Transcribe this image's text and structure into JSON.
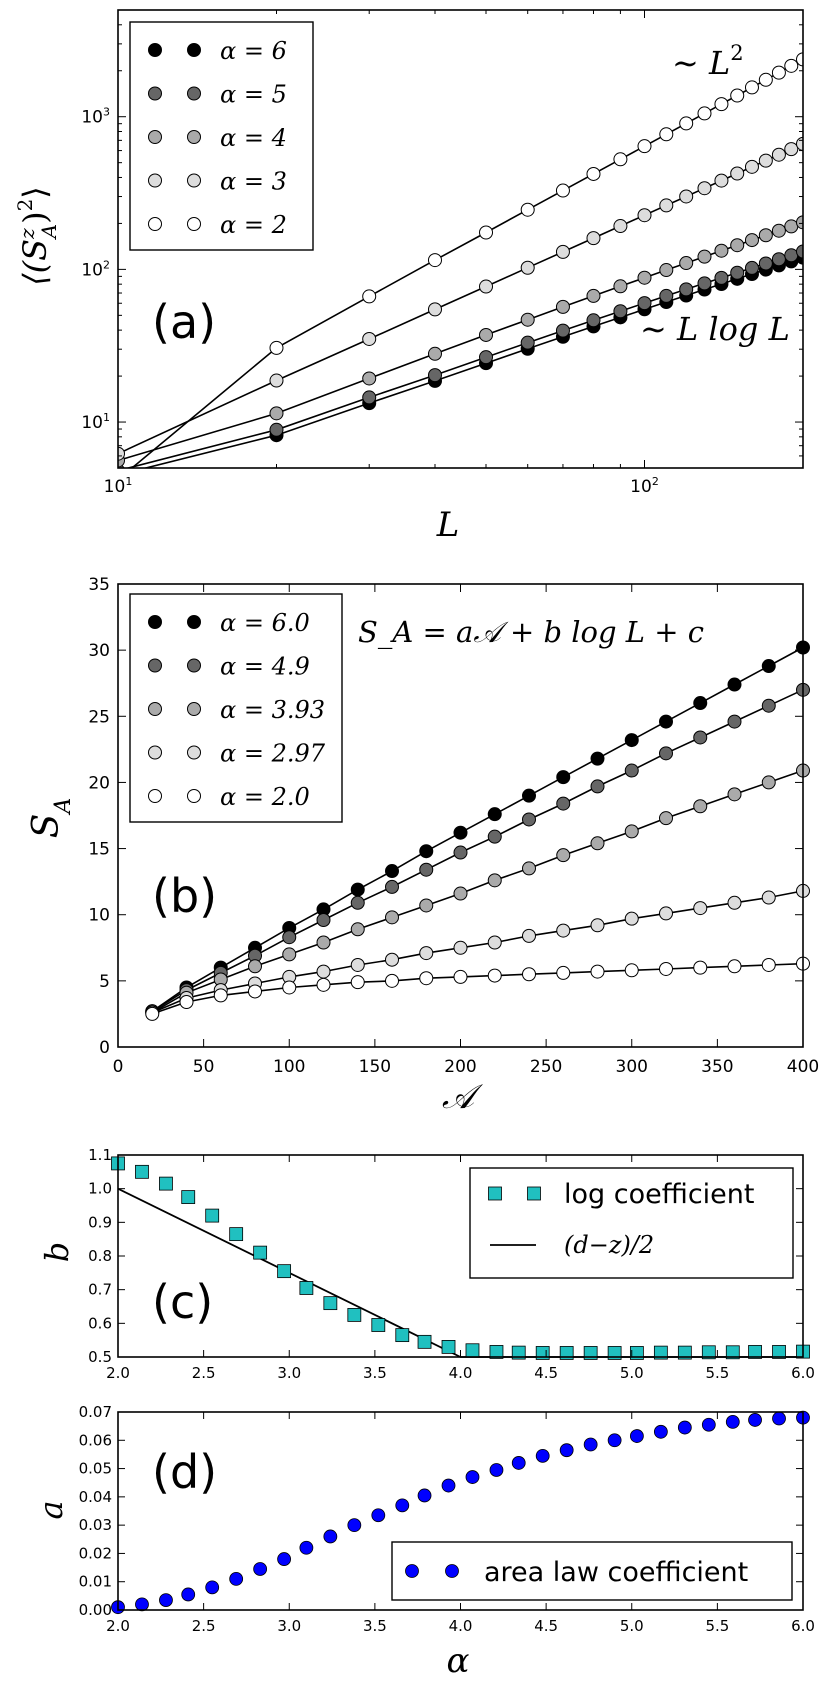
{
  "chart_data": [
    {
      "panel": "(a)",
      "type": "line",
      "scale": "log-log",
      "xlabel": "L",
      "ylabel": "⟨(S_A^z)^2⟩",
      "xlim": [
        10,
        200
      ],
      "ylim": [
        5,
        5000
      ],
      "xticks": [
        {
          "value": 10,
          "base": "10",
          "exp": "1"
        },
        {
          "value": 100,
          "base": "10",
          "exp": "2"
        }
      ],
      "yticks": [
        {
          "value": 10,
          "base": "10",
          "exp": "1"
        },
        {
          "value": 100,
          "base": "10",
          "exp": "2"
        },
        {
          "value": 1000,
          "base": "10",
          "exp": "3"
        }
      ],
      "legend_position": "top-left",
      "annotations": [
        {
          "text": "~ L²",
          "position": "top-right"
        },
        {
          "text": "~ L log L",
          "position": "right-middle"
        }
      ],
      "x": [
        10,
        20,
        30,
        40,
        50,
        60,
        70,
        80,
        90,
        100,
        110,
        120,
        130,
        140,
        150,
        160,
        170,
        180,
        190,
        200
      ],
      "series": [
        {
          "name": "α = 6",
          "fill": "#000000",
          "values": [
            4.5,
            8.2,
            13.3,
            18.6,
            24.3,
            30.2,
            36.2,
            42.3,
            48.5,
            54.8,
            61.1,
            67.4,
            73.8,
            80.2,
            86.7,
            93.2,
            99.7,
            106.2,
            112.8,
            119.4
          ]
        },
        {
          "name": "α = 5",
          "fill": "#666666",
          "values": [
            4.8,
            8.9,
            14.5,
            20.3,
            26.6,
            33.1,
            39.7,
            46.4,
            53.2,
            60.1,
            67.0,
            74.0,
            81.0,
            88.0,
            95.1,
            102.2,
            109.3,
            116.5,
            123.7,
            131.0
          ]
        },
        {
          "name": "α = 4",
          "fill": "#aaaaaa",
          "values": [
            5.6,
            11.4,
            19.3,
            28.0,
            37.2,
            46.8,
            56.8,
            67.0,
            77.5,
            88.2,
            99.0,
            110.0,
            121.2,
            132.5,
            144.0,
            155.6,
            167.3,
            179.2,
            191.2,
            203.3
          ]
        },
        {
          "name": "α = 3",
          "fill": "#dddddd",
          "values": [
            6.2,
            18.7,
            35.0,
            54.7,
            77.2,
            102.5,
            130.2,
            160.2,
            192.3,
            226.4,
            262.4,
            300.3,
            340.0,
            381.5,
            424.6,
            469.4,
            515.7,
            563.7,
            613.2,
            664.2
          ]
        },
        {
          "name": "α = 2",
          "fill": "#ffffff",
          "values": [
            4.2,
            30.6,
            66.5,
            115.0,
            174.4,
            245.9,
            328.3,
            421.8,
            526.1,
            641.3,
            767.2,
            903.8,
            1051.0,
            1208.8,
            1377.1,
            1555.8,
            1744.9,
            1944.4,
            2154.1,
            2374.0
          ]
        }
      ]
    },
    {
      "panel": "(b)",
      "type": "line",
      "xlabel": "𝒜",
      "ylabel": "S_A",
      "xlim": [
        0,
        400
      ],
      "ylim": [
        0,
        35
      ],
      "xticks": [
        "0",
        "50",
        "100",
        "150",
        "200",
        "250",
        "300",
        "350",
        "400"
      ],
      "yticks": [
        "0",
        "5",
        "10",
        "15",
        "20",
        "25",
        "30",
        "35"
      ],
      "legend_position": "top-left",
      "annotation": "S_A = a𝒜 + b log L + c",
      "x": [
        20,
        40,
        60,
        80,
        100,
        120,
        140,
        160,
        180,
        200,
        220,
        240,
        260,
        280,
        300,
        320,
        340,
        360,
        380,
        400
      ],
      "series": [
        {
          "name": "α = 6.0",
          "fill": "#000000",
          "values": [
            2.7,
            4.5,
            6.0,
            7.5,
            9.0,
            10.4,
            11.9,
            13.3,
            14.8,
            16.2,
            17.6,
            19.0,
            20.4,
            21.8,
            23.2,
            24.6,
            26.0,
            27.4,
            28.8,
            30.2
          ]
        },
        {
          "name": "α = 4.9",
          "fill": "#666666",
          "values": [
            2.7,
            4.3,
            5.6,
            6.9,
            8.3,
            9.6,
            10.9,
            12.1,
            13.4,
            14.7,
            15.9,
            17.2,
            18.4,
            19.7,
            20.9,
            22.2,
            23.4,
            24.6,
            25.8,
            27.0
          ]
        },
        {
          "name": "α = 3.93",
          "fill": "#aaaaaa",
          "values": [
            2.6,
            4.1,
            5.1,
            6.1,
            7.0,
            7.9,
            8.9,
            9.8,
            10.7,
            11.6,
            12.6,
            13.5,
            14.5,
            15.4,
            16.3,
            17.3,
            18.2,
            19.1,
            20.0,
            20.9
          ]
        },
        {
          "name": "α = 2.97",
          "fill": "#dddddd",
          "values": [
            2.6,
            3.7,
            4.3,
            4.8,
            5.3,
            5.7,
            6.2,
            6.6,
            7.1,
            7.5,
            7.9,
            8.4,
            8.8,
            9.2,
            9.7,
            10.1,
            10.5,
            10.9,
            11.3,
            11.8
          ]
        },
        {
          "name": "α = 2.0",
          "fill": "#ffffff",
          "values": [
            2.5,
            3.4,
            3.9,
            4.2,
            4.5,
            4.7,
            4.9,
            5.0,
            5.2,
            5.3,
            5.4,
            5.5,
            5.6,
            5.7,
            5.8,
            5.9,
            6.0,
            6.1,
            6.2,
            6.3
          ]
        }
      ]
    },
    {
      "panel": "(c)",
      "type": "scatter",
      "xlabel": "",
      "ylabel": "b",
      "xlim": [
        2.0,
        6.0
      ],
      "ylim": [
        0.5,
        1.1
      ],
      "xticks": [
        "2.0",
        "2.5",
        "3.0",
        "3.5",
        "4.0",
        "4.5",
        "5.0",
        "5.5",
        "6.0"
      ],
      "yticks": [
        "0.5",
        "0.6",
        "0.7",
        "0.8",
        "0.9",
        "1.0",
        "1.1"
      ],
      "legend_position": "top-right",
      "series": [
        {
          "name": "log coefficient",
          "marker": "square",
          "color": "#20c0c0",
          "x": [
            2.0,
            2.14,
            2.28,
            2.41,
            2.55,
            2.69,
            2.83,
            2.97,
            3.1,
            3.24,
            3.38,
            3.52,
            3.66,
            3.79,
            3.93,
            4.07,
            4.21,
            4.34,
            4.48,
            4.62,
            4.76,
            4.9,
            5.03,
            5.17,
            5.31,
            5.45,
            5.59,
            5.72,
            5.86,
            6.0
          ],
          "values": [
            1.075,
            1.05,
            1.015,
            0.975,
            0.92,
            0.865,
            0.81,
            0.755,
            0.705,
            0.66,
            0.625,
            0.595,
            0.565,
            0.545,
            0.53,
            0.52,
            0.515,
            0.513,
            0.512,
            0.512,
            0.512,
            0.512,
            0.512,
            0.513,
            0.513,
            0.514,
            0.514,
            0.515,
            0.515,
            0.516
          ]
        },
        {
          "name": "(d−z)/2",
          "marker": "line",
          "color": "#000000",
          "x": [
            2.0,
            4.0,
            6.0
          ],
          "values": [
            1.0,
            0.5,
            0.5
          ]
        }
      ]
    },
    {
      "panel": "(d)",
      "type": "scatter",
      "xlabel": "α",
      "ylabel": "a",
      "xlim": [
        2.0,
        6.0
      ],
      "ylim": [
        0.0,
        0.07
      ],
      "xticks": [
        "2.0",
        "2.5",
        "3.0",
        "3.5",
        "4.0",
        "4.5",
        "5.0",
        "5.5",
        "6.0"
      ],
      "yticks": [
        "0.00",
        "0.01",
        "0.02",
        "0.03",
        "0.04",
        "0.05",
        "0.06",
        "0.07"
      ],
      "legend_position": "bottom-right",
      "series": [
        {
          "name": "area law coefficient",
          "marker": "circle",
          "color": "#0000ff",
          "x": [
            2.0,
            2.14,
            2.28,
            2.41,
            2.55,
            2.69,
            2.83,
            2.97,
            3.1,
            3.24,
            3.38,
            3.52,
            3.66,
            3.79,
            3.93,
            4.07,
            4.21,
            4.34,
            4.48,
            4.62,
            4.76,
            4.9,
            5.03,
            5.17,
            5.31,
            5.45,
            5.59,
            5.72,
            5.86,
            6.0
          ],
          "values": [
            0.001,
            0.002,
            0.0035,
            0.0055,
            0.008,
            0.011,
            0.0145,
            0.018,
            0.022,
            0.026,
            0.03,
            0.0335,
            0.037,
            0.0405,
            0.044,
            0.047,
            0.0495,
            0.052,
            0.0545,
            0.0565,
            0.0585,
            0.06,
            0.0615,
            0.063,
            0.0645,
            0.0655,
            0.0665,
            0.0672,
            0.0677,
            0.068
          ]
        }
      ]
    }
  ],
  "labels": {
    "a": {
      "panel": "(a)",
      "xlabel": "L",
      "yl_open": "⟨(",
      "yl_S": "S",
      "yl_sup": "z",
      "yl_sub": "A",
      "yl_close": ")",
      "yl_sq": "2",
      "yl_rangle": "⟩",
      "annot_l2_pre": "∼ L",
      "annot_l2_exp": "2",
      "annot_llog": "∼ L log L"
    },
    "b": {
      "panel": "(b)",
      "xlabel": "𝒜",
      "ylabel_S": "S",
      "ylabel_sub": "A",
      "annot": "S_A = a𝒜 + b log L + c"
    },
    "c": {
      "panel": "(c)",
      "ylabel": "b"
    },
    "d": {
      "panel": "(d)",
      "ylabel": "a",
      "xlabel": "α"
    }
  }
}
